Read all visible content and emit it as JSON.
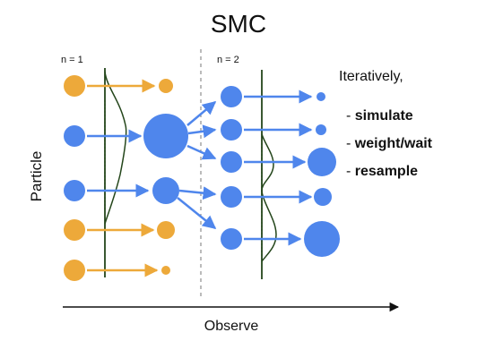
{
  "title": "SMC",
  "stage_labels": [
    "n = 1",
    "n = 2"
  ],
  "y_axis_label": "Particle",
  "x_axis_label": "Observe",
  "steps_intro": "Iteratively,",
  "steps": [
    {
      "dash": "- ",
      "text": "simulate"
    },
    {
      "dash": "- ",
      "text": "weight/wait"
    },
    {
      "dash": "- ",
      "text": "resample"
    }
  ],
  "colors": {
    "blue": "#4f86ec",
    "orange": "#eda93a",
    "curve": "#24461b",
    "text": "#111111"
  }
}
